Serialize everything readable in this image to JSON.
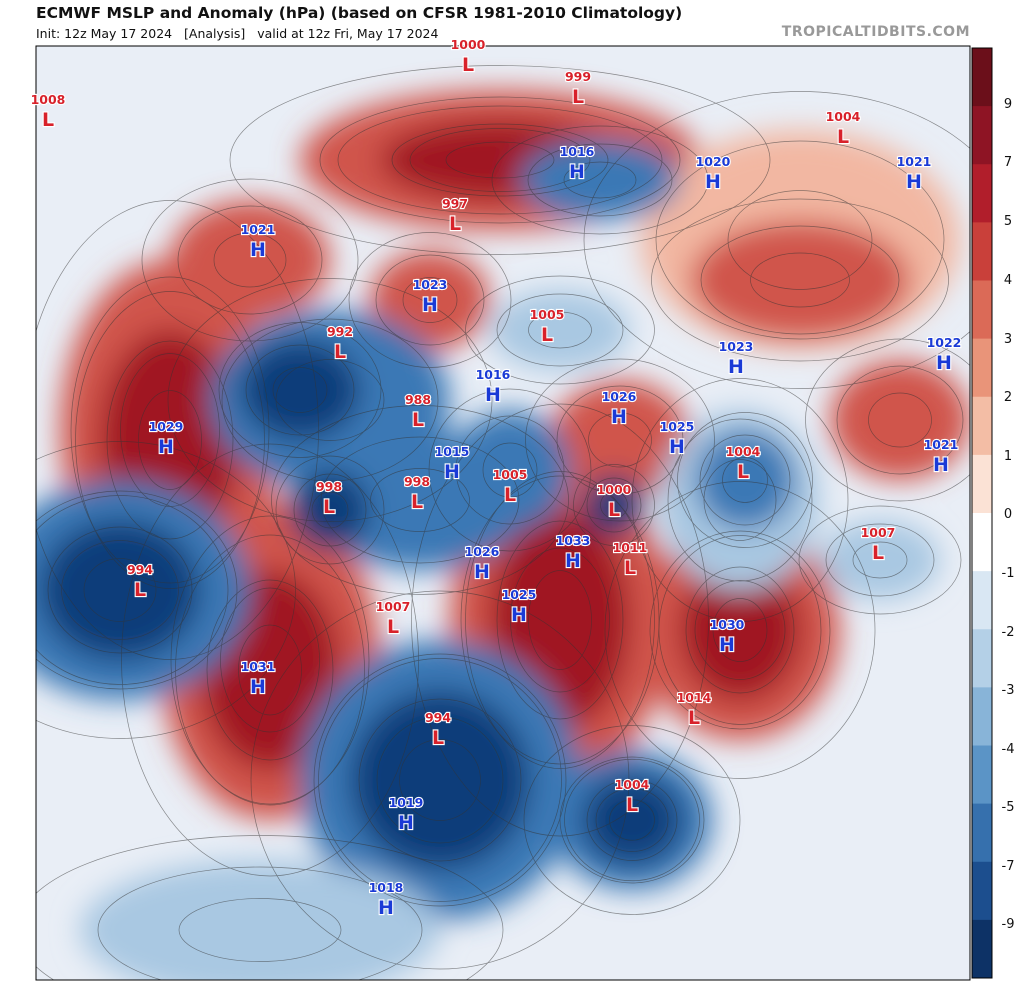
{
  "header": {
    "title": "ECMWF MSLP and Anomaly (hPa) (based on CFSR 1981-2010 Climatology)",
    "subtitle": "Init: 12z May 17 2024   [Analysis]   valid at 12z Fri, May 17 2024",
    "site": "TROPICALTIDBITS.COM"
  },
  "colorbar": {
    "labels": [
      9,
      7,
      5,
      4,
      3,
      2,
      1,
      0,
      -1,
      -2,
      -3,
      -4,
      -5,
      -7,
      -9
    ]
  },
  "centers": [
    {
      "label": "L",
      "value": 1008
    },
    {
      "label": "L",
      "value": 1000
    },
    {
      "label": "L",
      "value": 999
    },
    {
      "label": "L",
      "value": 1004
    },
    {
      "label": "H",
      "value": 1020
    },
    {
      "label": "H",
      "value": 1021
    },
    {
      "label": "H",
      "value": 1016
    },
    {
      "label": "L",
      "value": 997
    },
    {
      "label": "H",
      "value": 1021
    },
    {
      "label": "H",
      "value": 1023
    },
    {
      "label": "L",
      "value": 1005
    },
    {
      "label": "L",
      "value": 992
    },
    {
      "label": "H",
      "value": 1023
    },
    {
      "label": "H",
      "value": 1022
    },
    {
      "label": "H",
      "value": 1016
    },
    {
      "label": "H",
      "value": 1029
    },
    {
      "label": "L",
      "value": 988
    },
    {
      "label": "H",
      "value": 1026
    },
    {
      "label": "H",
      "value": 1025
    },
    {
      "label": "L",
      "value": 1004
    },
    {
      "label": "H",
      "value": 1021
    },
    {
      "label": "H",
      "value": 1015
    },
    {
      "label": "L",
      "value": 998
    },
    {
      "label": "L",
      "value": 998
    },
    {
      "label": "L",
      "value": 1005
    },
    {
      "label": "L",
      "value": 1000
    },
    {
      "label": "L",
      "value": 1007
    },
    {
      "label": "H",
      "value": 1026
    },
    {
      "label": "H",
      "value": 1033
    },
    {
      "label": "L",
      "value": 1011
    },
    {
      "label": "L",
      "value": 994
    },
    {
      "label": "L",
      "value": 1007
    },
    {
      "label": "H",
      "value": 1025
    },
    {
      "label": "H",
      "value": 1030
    },
    {
      "label": "H",
      "value": 1031
    },
    {
      "label": "L",
      "value": 1014
    },
    {
      "label": "L",
      "value": 994
    },
    {
      "label": "L",
      "value": 1004
    },
    {
      "label": "H",
      "value": 1019
    },
    {
      "label": "H",
      "value": 1018
    }
  ]
}
